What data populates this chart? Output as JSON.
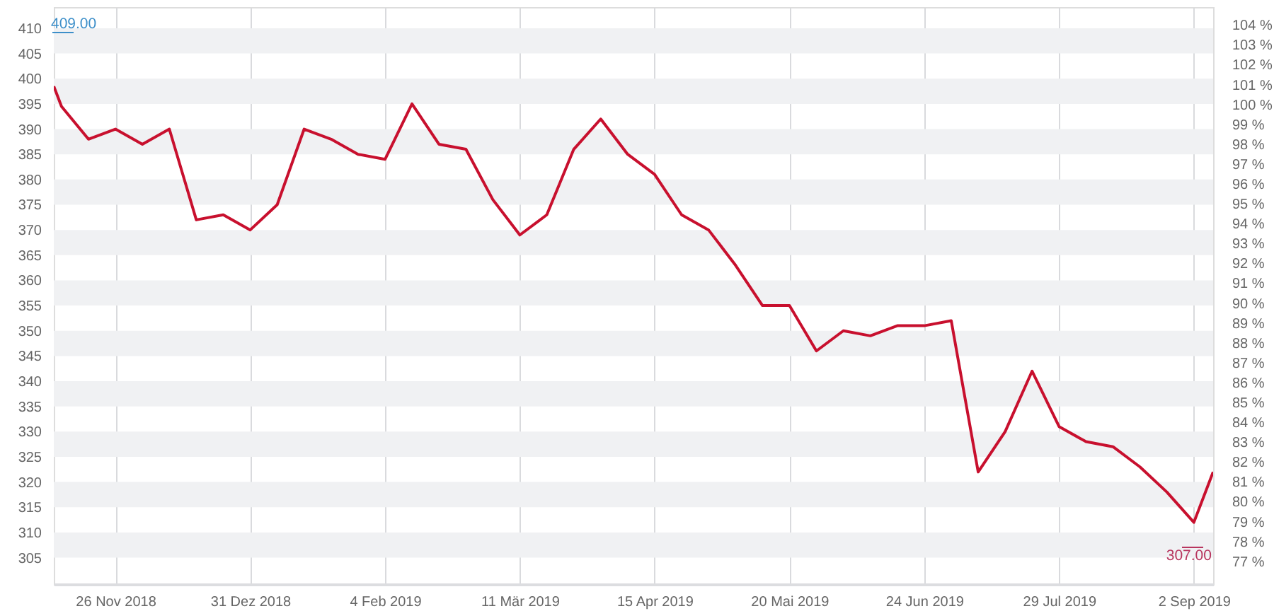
{
  "chart_data": {
    "type": "line",
    "x": [
      "2018-11-10",
      "2018-11-12",
      "2018-11-19",
      "2018-11-26",
      "2018-12-03",
      "2018-12-10",
      "2018-12-17",
      "2018-12-24",
      "2018-12-31",
      "2019-01-07",
      "2019-01-14",
      "2019-01-21",
      "2019-01-28",
      "2019-02-04",
      "2019-02-11",
      "2019-02-18",
      "2019-02-25",
      "2019-03-04",
      "2019-03-11",
      "2019-03-18",
      "2019-03-25",
      "2019-04-01",
      "2019-04-08",
      "2019-04-15",
      "2019-04-22",
      "2019-04-29",
      "2019-05-06",
      "2019-05-13",
      "2019-05-20",
      "2019-05-27",
      "2019-06-03",
      "2019-06-10",
      "2019-06-17",
      "2019-06-24",
      "2019-07-01",
      "2019-07-08",
      "2019-07-15",
      "2019-07-22",
      "2019-07-29",
      "2019-08-05",
      "2019-08-12",
      "2019-08-19",
      "2019-08-26",
      "2019-09-02",
      "2019-09-07"
    ],
    "series": [
      {
        "color": "#c8102e",
        "values": [
          398.5,
          394.5,
          388,
          390,
          387,
          390,
          372,
          373,
          370,
          375,
          390,
          388,
          385,
          384,
          395,
          387,
          386,
          376,
          369,
          373,
          386,
          392,
          385,
          381,
          373,
          370,
          363,
          355,
          355,
          346,
          350,
          349,
          351,
          351,
          352,
          322,
          330,
          342,
          331,
          328,
          327,
          323,
          318,
          312,
          322
        ]
      }
    ],
    "xlim": [
      "2018-11-10",
      "2019-09-07"
    ],
    "xticks": [
      {
        "value": "2018-11-26",
        "label": "26 Nov 2018"
      },
      {
        "value": "2018-12-31",
        "label": "31 Dez 2018"
      },
      {
        "value": "2019-02-04",
        "label": "4 Feb 2019"
      },
      {
        "value": "2019-03-11",
        "label": "11 Mär 2019"
      },
      {
        "value": "2019-04-15",
        "label": "15 Apr 2019"
      },
      {
        "value": "2019-05-20",
        "label": "20 Mai 2019"
      },
      {
        "value": "2019-06-24",
        "label": "24 Jun 2019"
      },
      {
        "value": "2019-07-29",
        "label": "29 Jul 2019"
      },
      {
        "value": "2019-09-02",
        "label": "2 Sep 2019"
      }
    ],
    "ylim": [
      299.75,
      414.2
    ],
    "yticks": [
      305,
      310,
      315,
      320,
      325,
      330,
      335,
      340,
      345,
      350,
      355,
      360,
      365,
      370,
      375,
      380,
      385,
      390,
      395,
      400,
      405,
      410
    ],
    "y2lim": [
      75.85,
      104.9
    ],
    "y2ticks": [
      {
        "value": 77,
        "label": "77 %"
      },
      {
        "value": 78,
        "label": "78 %"
      },
      {
        "value": 79,
        "label": "79 %"
      },
      {
        "value": 80,
        "label": "80 %"
      },
      {
        "value": 81,
        "label": "81 %"
      },
      {
        "value": 82,
        "label": "82 %"
      },
      {
        "value": 83,
        "label": "83 %"
      },
      {
        "value": 84,
        "label": "84 %"
      },
      {
        "value": 85,
        "label": "85 %"
      },
      {
        "value": 86,
        "label": "86 %"
      },
      {
        "value": 87,
        "label": "87 %"
      },
      {
        "value": 88,
        "label": "88 %"
      },
      {
        "value": 89,
        "label": "89 %"
      },
      {
        "value": 90,
        "label": "90 %"
      },
      {
        "value": 91,
        "label": "91 %"
      },
      {
        "value": 92,
        "label": "92 %"
      },
      {
        "value": 93,
        "label": "93 %"
      },
      {
        "value": 94,
        "label": "94 %"
      },
      {
        "value": 95,
        "label": "95 %"
      },
      {
        "value": 96,
        "label": "96 %"
      },
      {
        "value": 97,
        "label": "97 %"
      },
      {
        "value": 98,
        "label": "98 %"
      },
      {
        "value": 99,
        "label": "99 %"
      },
      {
        "value": 100,
        "label": "100 %"
      },
      {
        "value": 101,
        "label": "101 %"
      },
      {
        "value": 102,
        "label": "102 %"
      },
      {
        "value": 103,
        "label": "103 %"
      },
      {
        "value": 104,
        "label": "104 %"
      }
    ],
    "grid": true,
    "annotations": [
      "409.00",
      "307.00"
    ]
  }
}
